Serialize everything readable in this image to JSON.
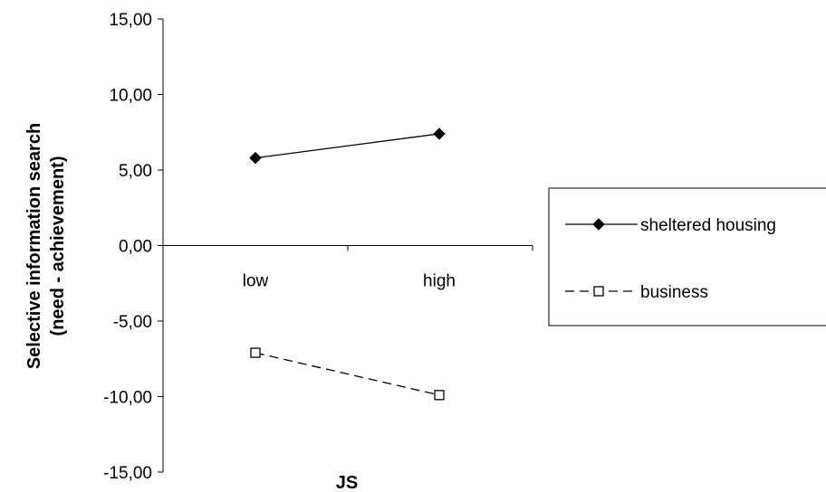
{
  "chart_data": {
    "type": "line",
    "categories": [
      "low",
      "high"
    ],
    "series": [
      {
        "name": "sheltered housing",
        "values": [
          5.8,
          7.4
        ],
        "line_style": "solid",
        "marker": "filled-diamond",
        "color": "#000000"
      },
      {
        "name": "business",
        "values": [
          -7.1,
          -9.9
        ],
        "line_style": "dashed",
        "marker": "open-square",
        "color": "#000000"
      }
    ],
    "xlabel": "JS",
    "ylabel_lines": [
      "Selective information search",
      "(need - achievement)"
    ],
    "ylim": [
      -15,
      15
    ],
    "yticks": [
      15,
      10,
      5,
      0,
      -5,
      -10,
      -15
    ],
    "ytick_labels": [
      "15,00",
      "10,00",
      "5,00",
      "0,00",
      "-5,00",
      "-10,00",
      "-15,00"
    ],
    "grid": false,
    "legend_position": "right"
  }
}
